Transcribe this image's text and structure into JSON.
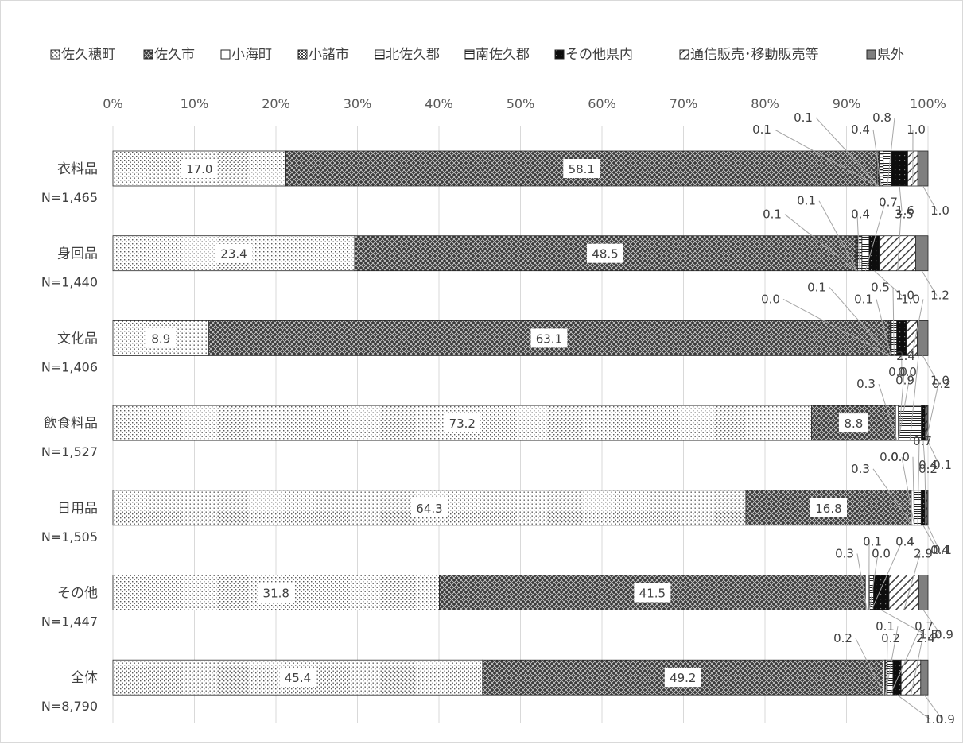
{
  "chart_data": {
    "type": "bar",
    "orientation": "horizontal",
    "stacked": "percent",
    "x_ticks": [
      "0%",
      "10%",
      "20%",
      "30%",
      "40%",
      "50%",
      "60%",
      "70%",
      "80%",
      "90%",
      "100%"
    ],
    "xlim": [
      0,
      100
    ],
    "grid": true,
    "legend_position": "top",
    "categories": [
      {
        "label": "衣料品",
        "n": "N=1,465"
      },
      {
        "label": "身回品",
        "n": "N=1,440"
      },
      {
        "label": "文化品",
        "n": "N=1,406"
      },
      {
        "label": "飲食料品",
        "n": "N=1,527"
      },
      {
        "label": "日用品",
        "n": "N=1,505"
      },
      {
        "label": "その他",
        "n": "N=1,447"
      },
      {
        "label": "全体",
        "n": "N=8,790"
      }
    ],
    "series": [
      {
        "name": "佐久穂町",
        "pattern": "dots",
        "values": [
          17.0,
          23.4,
          8.9,
          73.2,
          64.3,
          31.8,
          45.4
        ]
      },
      {
        "name": "佐久市",
        "pattern": "cross",
        "values": [
          58.1,
          48.5,
          63.1,
          8.8,
          16.8,
          41.5,
          49.2
        ]
      },
      {
        "name": "小海町",
        "pattern": "white",
        "values": [
          0.1,
          0.1,
          0.0,
          0.3,
          0.3,
          0.3,
          0.2
        ]
      },
      {
        "name": "小諸市",
        "pattern": "check",
        "values": [
          0.1,
          0.1,
          0.1,
          0.0,
          0.0,
          0.1,
          0.1
        ]
      },
      {
        "name": "北佐久郡",
        "pattern": "hlines",
        "values": [
          0.4,
          0.4,
          0.1,
          0.0,
          0.0,
          0.0,
          0.2
        ]
      },
      {
        "name": "南佐久郡",
        "pattern": "hlines2",
        "values": [
          0.8,
          0.7,
          0.5,
          2.4,
          0.7,
          0.4,
          0.7
        ]
      },
      {
        "name": "その他県内",
        "pattern": "black",
        "values": [
          1.6,
          1.0,
          0.9,
          0.4,
          0.4,
          1.5,
          1.0
        ]
      },
      {
        "name": "通信販売･移動販売等",
        "pattern": "diag",
        "values": [
          1.0,
          3.5,
          1.0,
          0.2,
          0.2,
          2.9,
          2.4
        ]
      },
      {
        "name": "県外",
        "pattern": "gray",
        "values": [
          1.0,
          1.2,
          1.0,
          0.1,
          0.1,
          0.9,
          0.9
        ]
      }
    ]
  },
  "colors": {
    "grid": "#d9d9d9",
    "outline": "#262626",
    "gray_bar": "#7f7f7f",
    "leader": "#a6a6a6",
    "text": "#404040"
  }
}
